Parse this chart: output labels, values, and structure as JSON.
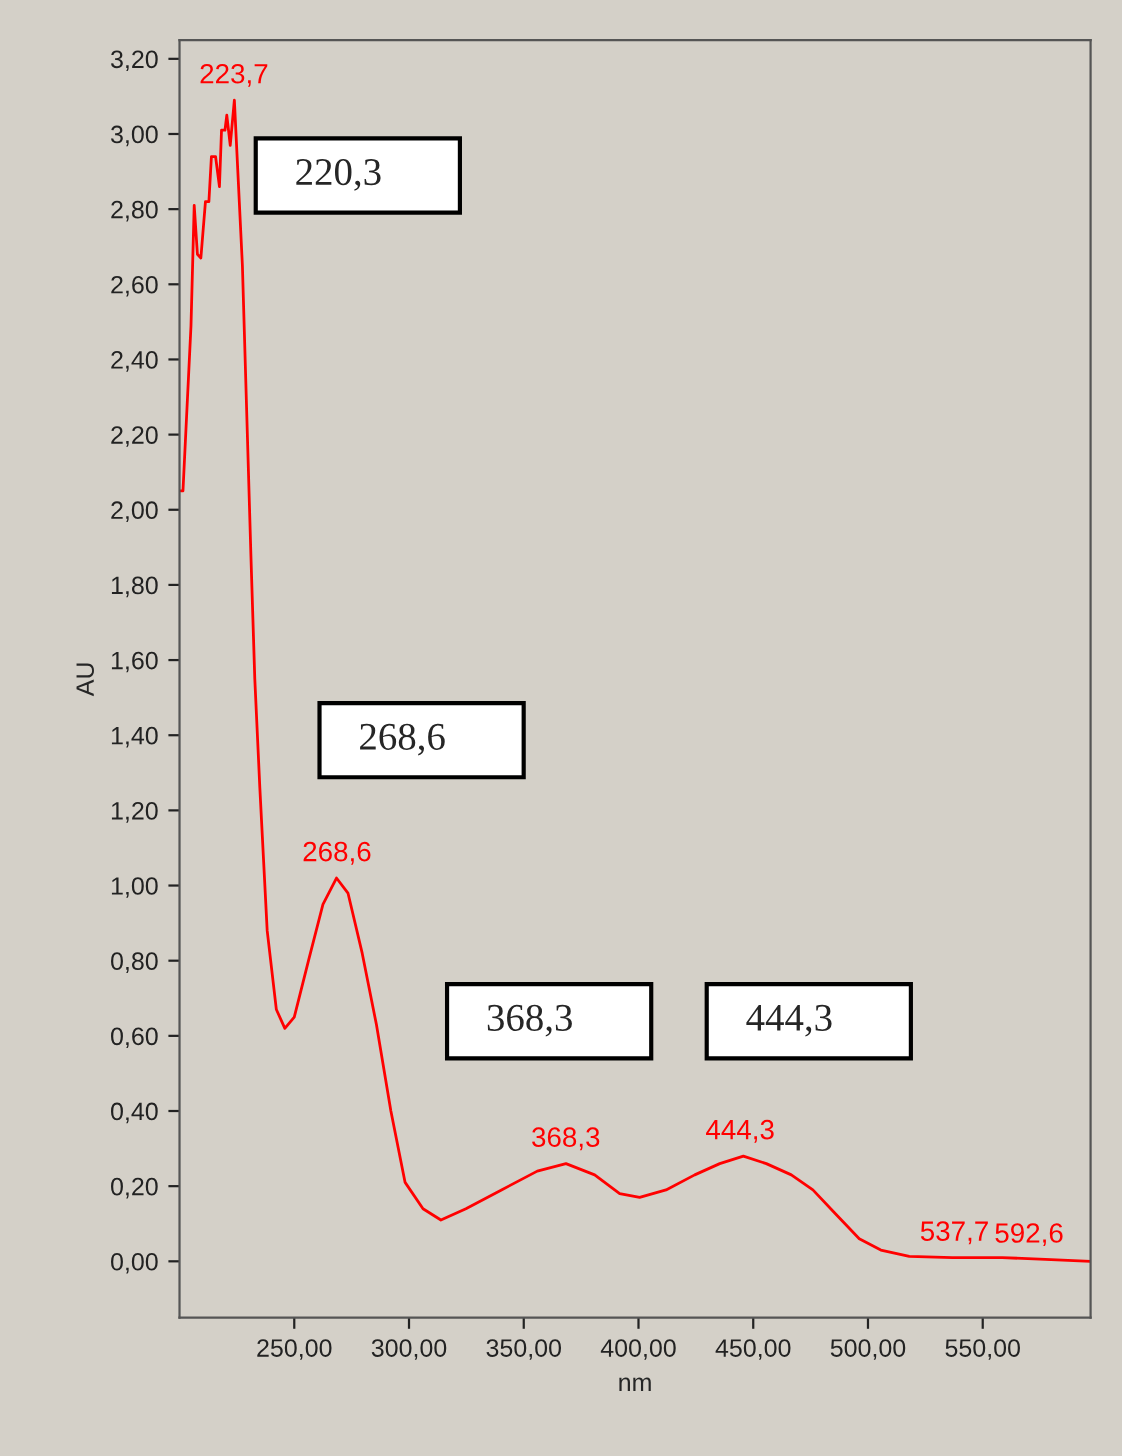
{
  "chart_data": {
    "type": "line",
    "xlabel": "nm",
    "ylabel": "AU",
    "xlim": [
      200,
      597
    ],
    "ylim": [
      -0.15,
      3.25
    ],
    "xticks": [
      {
        "value": 250,
        "label": "250,00"
      },
      {
        "value": 300,
        "label": "300,00"
      },
      {
        "value": 350,
        "label": "350,00"
      },
      {
        "value": 400,
        "label": "400,00"
      },
      {
        "value": 450,
        "label": "450,00"
      },
      {
        "value": 500,
        "label": "500,00"
      },
      {
        "value": 550,
        "label": "550,00"
      }
    ],
    "yticks": [
      {
        "value": 0,
        "label": "0,00"
      },
      {
        "value": 0.2,
        "label": "0,20"
      },
      {
        "value": 0.4,
        "label": "0,40"
      },
      {
        "value": 0.6,
        "label": "0,60"
      },
      {
        "value": 0.8,
        "label": "0,80"
      },
      {
        "value": 1.0,
        "label": "1,00"
      },
      {
        "value": 1.2,
        "label": "1,20"
      },
      {
        "value": 1.4,
        "label": "1,40"
      },
      {
        "value": 1.6,
        "label": "1,60"
      },
      {
        "value": 1.8,
        "label": "1,80"
      },
      {
        "value": 2.0,
        "label": "2,00"
      },
      {
        "value": 2.2,
        "label": "2,20"
      },
      {
        "value": 2.4,
        "label": "2,40"
      },
      {
        "value": 2.6,
        "label": "2,60"
      },
      {
        "value": 2.8,
        "label": "2,80"
      },
      {
        "value": 3.0,
        "label": "3,00"
      },
      {
        "value": 3.2,
        "label": "3,20"
      }
    ],
    "grid": false,
    "legend": false,
    "marker": "none",
    "line_style": "solid",
    "series": [
      {
        "color": "#ff0000",
        "x": [
          200.6,
          201.5,
          205.0,
          206.4,
          207.8,
          209.3,
          211.3,
          212.8,
          213.9,
          215.7,
          217.4,
          218.3,
          219.8,
          220.6,
          222.1,
          223.9,
          227.4,
          231.1,
          232.8,
          235.0,
          238.2,
          242.2,
          245.9,
          250.0,
          256.2,
          262.5,
          268.4,
          273.4,
          279.6,
          285.8,
          292.1,
          298.3,
          306.1,
          313.9,
          324.8,
          340.3,
          355.9,
          368.4,
          380.9,
          391.8,
          400.5,
          412.0,
          424.5,
          435.4,
          445.7,
          455.7,
          466.6,
          476.0,
          485.3,
          496.2,
          505.6,
          518.0,
          536.7,
          558.5,
          577.3,
          597.0
        ],
        "values": [
          2.05,
          2.05,
          2.49,
          2.81,
          2.68,
          2.67,
          2.82,
          2.82,
          2.94,
          2.94,
          2.86,
          3.01,
          3.01,
          3.05,
          2.97,
          3.09,
          2.65,
          1.88,
          1.55,
          1.26,
          0.88,
          0.67,
          0.62,
          0.65,
          0.8,
          0.95,
          1.02,
          0.98,
          0.82,
          0.63,
          0.4,
          0.21,
          0.14,
          0.11,
          0.14,
          0.19,
          0.24,
          0.26,
          0.23,
          0.18,
          0.17,
          0.19,
          0.23,
          0.26,
          0.28,
          0.26,
          0.23,
          0.19,
          0.13,
          0.06,
          0.03,
          0.013,
          0.01,
          0.01,
          0.005,
          0.0
        ]
      }
    ],
    "annotations": [
      {
        "text": "223,7",
        "x": 223.7,
        "y": 3.09
      },
      {
        "text": "268,6",
        "x": 268.6,
        "y": 1.02
      },
      {
        "text": "368,3",
        "x": 368.3,
        "y": 0.26
      },
      {
        "text": "444,3",
        "x": 444.3,
        "y": 0.28
      },
      {
        "text": "537,7",
        "x": 537.7,
        "y": 0.01
      },
      {
        "text": "592,6",
        "x": 592.6,
        "y": 0.005
      },
      "220,3",
      "268,6",
      "368,3",
      "444,3"
    ]
  }
}
